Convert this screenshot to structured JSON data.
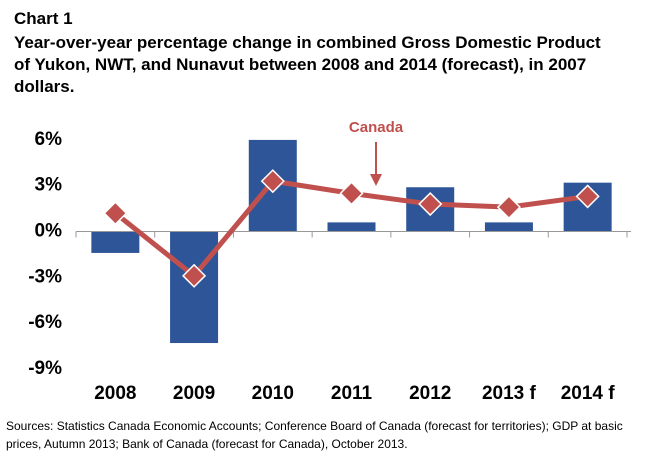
{
  "chart_data": {
    "type": "bar_line",
    "chart_label": "Chart 1",
    "title": "Year-over-year percentage change in combined Gross Domestic Product of Yukon, NWT, and Nunavut between 2008 and 2014 (forecast), in 2007 dollars.",
    "source": "Sources: Statistics Canada Economic Accounts; Conference Board of Canada (forecast for territories); GDP at basic prices, Autumn 2013; Bank of Canada (forecast for Canada), October 2013.",
    "categories": [
      "2008",
      "2009",
      "2010",
      "2011",
      "2012",
      "2013 f",
      "2014 f"
    ],
    "series": [
      {
        "type": "bar",
        "color": "#2e5597",
        "values": [
          -1.4,
          -7.3,
          6.0,
          0.6,
          2.9,
          0.6,
          3.2
        ]
      },
      {
        "type": "line",
        "name": "Canada",
        "color": "#c0504d",
        "values": [
          1.2,
          -2.9,
          3.3,
          2.5,
          1.8,
          1.6,
          2.3
        ]
      }
    ],
    "ylim": [
      -9,
      7.5
    ],
    "yticks": [
      {
        "value": -9,
        "label": "-9%"
      },
      {
        "value": -6,
        "label": "-6%"
      },
      {
        "value": -3,
        "label": "-3%"
      },
      {
        "value": 0,
        "label": "0%"
      },
      {
        "value": 3,
        "label": "3%"
      },
      {
        "value": 6,
        "label": "6%"
      }
    ]
  }
}
